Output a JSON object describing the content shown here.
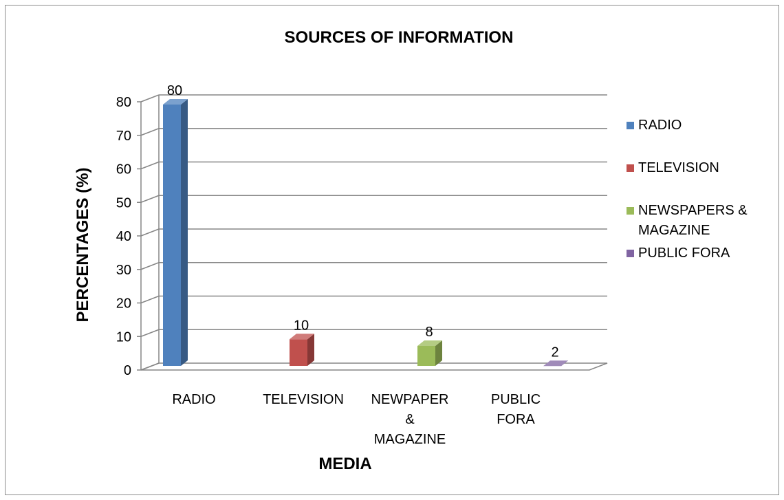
{
  "chart_data": {
    "type": "bar",
    "title": "SOURCES OF INFORMATION",
    "xlabel": "MEDIA",
    "ylabel": "PERCENTAGES (%)",
    "categories": [
      [
        "RADIO"
      ],
      [
        "TELEVISION"
      ],
      [
        "NEWPAPER",
        "&",
        "MAGAZINE"
      ],
      [
        "PUBLIC",
        "FORA"
      ]
    ],
    "series": [
      {
        "name": "RADIO",
        "values": [
          80,
          null,
          null,
          null
        ],
        "color": "#4F81BD"
      },
      {
        "name": "TELEVISION",
        "values": [
          null,
          10,
          null,
          null
        ],
        "color": "#C0504D"
      },
      {
        "name": "NEWSPAPERS & MAGAZINE",
        "values": [
          null,
          null,
          8,
          null
        ],
        "color": "#9BBB59"
      },
      {
        "name": "PUBLIC FORA",
        "values": [
          null,
          null,
          null,
          2
        ],
        "color": "#8064A2"
      }
    ],
    "data_labels": [
      "80",
      "10",
      "8",
      "2"
    ],
    "legend_lines": [
      [
        "RADIO"
      ],
      [
        "TELEVISION"
      ],
      [
        "NEWSPAPERS &",
        "MAGAZINE"
      ],
      [
        "PUBLIC FORA"
      ]
    ],
    "yticks": [
      0,
      10,
      20,
      30,
      40,
      50,
      60,
      70,
      80
    ],
    "ylim": [
      0,
      80
    ],
    "grid": true,
    "legend_position": "right",
    "style": "3d-column"
  }
}
